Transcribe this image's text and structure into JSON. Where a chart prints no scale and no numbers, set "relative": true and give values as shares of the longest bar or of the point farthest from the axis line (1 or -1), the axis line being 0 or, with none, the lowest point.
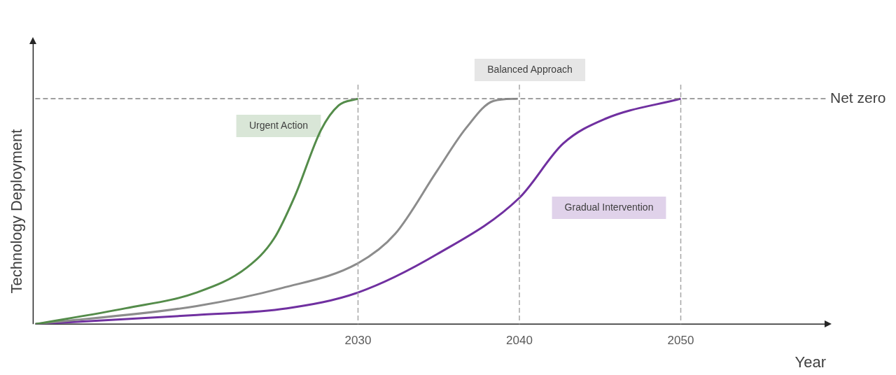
{
  "chart_data": {
    "type": "line",
    "relative": true,
    "xlabel": "Year",
    "ylabel": "Technology Deployment",
    "xlim": [
      2010,
      2059
    ],
    "xticks": [
      2030,
      2040,
      2050
    ],
    "tick_labels": "x",
    "legend": false,
    "grid": false,
    "marker": "none",
    "series": [
      {
        "name": "Urgent Action",
        "color": "#548c4a",
        "x": [
          2010,
          2015.6,
          2020,
          2023.1,
          2024.8,
          2026.1,
          2027.7,
          2028.8,
          2030
        ],
        "values": [
          0,
          0.07,
          0.14,
          0.25,
          0.38,
          0.57,
          0.86,
          0.97,
          1
        ]
      },
      {
        "name": "Balanced Approach",
        "color": "#8c8c8c",
        "x": [
          2010,
          2020,
          2025.3,
          2030,
          2032.3,
          2034.9,
          2036.7,
          2038.4,
          2039.9
        ],
        "values": [
          0,
          0.08,
          0.16,
          0.27,
          0.4,
          0.68,
          0.87,
          0.99,
          1
        ]
      },
      {
        "name": "Gradual Intervention",
        "color": "#7030a0",
        "x": [
          2010,
          2020,
          2025.6,
          2030,
          2034.9,
          2040,
          2042.7,
          2045.3,
          2050
        ],
        "values": [
          0,
          0.04,
          0.07,
          0.14,
          0.31,
          0.56,
          0.8,
          0.91,
          1
        ]
      }
    ],
    "ref_lines": [
      {
        "axis": "y",
        "value": 1,
        "label": "Net zero",
        "color": "#808080",
        "line_style": "dashed"
      },
      {
        "axis": "x",
        "value": 2030,
        "color": "#a6a6a6",
        "line_style": "dashed"
      },
      {
        "axis": "x",
        "value": 2040,
        "color": "#a6a6a6",
        "line_style": "dashed"
      },
      {
        "axis": "x",
        "value": 2050,
        "color": "#a6a6a6",
        "line_style": "dashed"
      }
    ]
  }
}
